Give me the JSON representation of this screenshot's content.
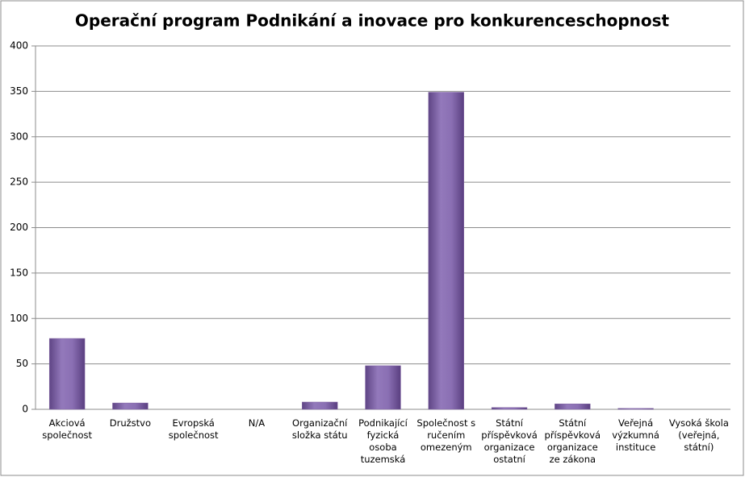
{
  "chart_data": {
    "type": "bar",
    "title": "Operační program Podnikání a inovace pro konkurenceschopnost",
    "categories": [
      "Akciová společnost",
      "Družstvo",
      "Evropská společnost",
      "N/A",
      "Organizační složka státu",
      "Podnikající fyzická osoba tuzemská",
      "Společnost s ručením omezeným",
      "Státní příspěvková organizace ostatní",
      "Státní příspěvková organizace ze zákona",
      "Veřejná výzkumná instituce",
      "Vysoká škola (veřejná, státní)"
    ],
    "values": [
      78,
      7,
      0,
      0,
      8,
      48,
      349,
      2,
      6,
      1,
      0
    ],
    "color": "#8064a2",
    "ylim": [
      0,
      400
    ],
    "yticks": [
      0,
      50,
      100,
      150,
      200,
      250,
      300,
      350,
      400
    ],
    "grid": true
  }
}
